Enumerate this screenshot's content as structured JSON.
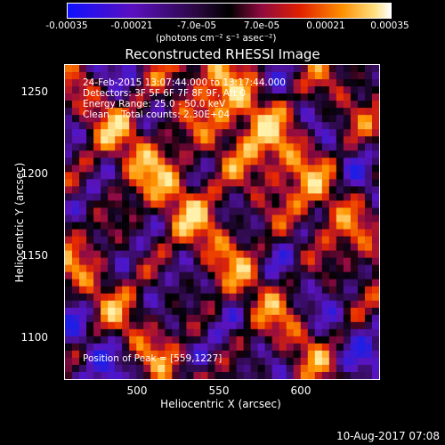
{
  "colorbar": {
    "ticks": [
      "-0.00035",
      "-0.00021",
      "-7.0e-05",
      "7.0e-05",
      "0.00021",
      "0.00035"
    ],
    "unit": "(photons cm⁻² s⁻¹ asec⁻²)",
    "colors": [
      "#1010ff",
      "#6a0ca8",
      "#000000",
      "#b0105a",
      "#ff3000",
      "#ffa000",
      "#ffffff"
    ]
  },
  "plot": {
    "title": "Reconstructed RHESSI Image",
    "xlabel": "Heliocentric X (arcsec)",
    "ylabel": "Heliocentric Y (arcsec)",
    "xticks": [
      "500",
      "550",
      "600"
    ],
    "yticks": [
      "1250",
      "1200",
      "1150",
      "1100"
    ],
    "annotations": {
      "time": "24-Feb-2015 13:07:44.000 to 13:17:44.000",
      "detectors": "Detectors: 3F 5F 6F 7F 8F 9F, Att 0",
      "energy": "Energy Range: 25.0 - 50.0 keV",
      "clean": "Clean    Total counts: 2.30E+04",
      "peak": "Position of Peak = [559,1227]"
    }
  },
  "footer": {
    "date": "10-Aug-2017 07:08"
  }
}
